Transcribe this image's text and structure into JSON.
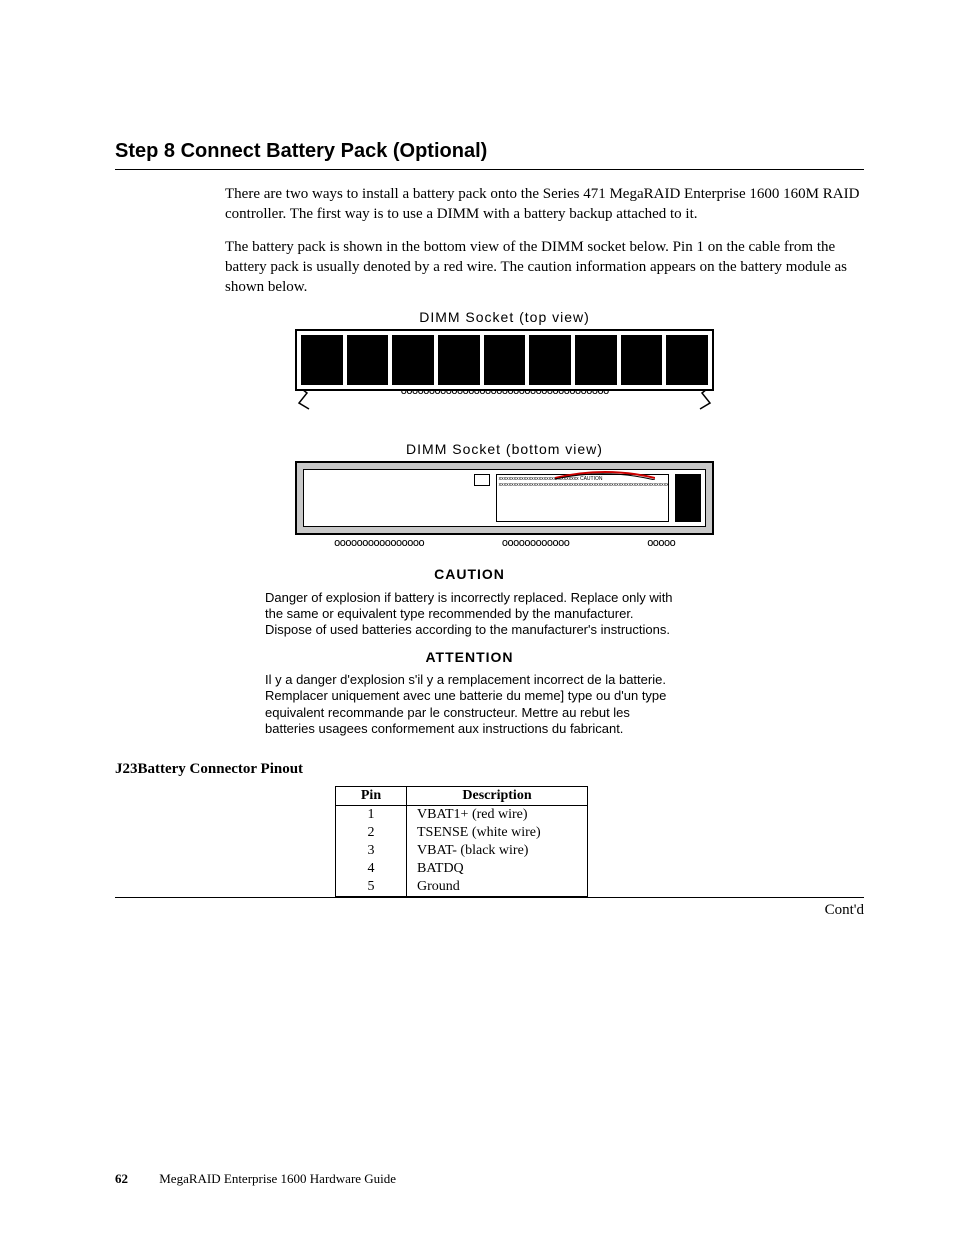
{
  "heading": "Step 8 Connect Battery Pack (Optional)",
  "paragraphs": {
    "p1": "There are two ways to install a battery pack onto the Series 471 MegaRAID Enterprise 1600 160M RAID controller. The first way is to use a DIMM with a battery backup attached to it.",
    "p2": "The battery pack is shown in the bottom view of the DIMM socket below. Pin 1 on the cable from the battery pack is usually denoted by a red wire. The caution information appears on the battery module as shown below."
  },
  "diagram": {
    "top_label": "DIMM  Socket  (top  view)",
    "bottom_label": "DIMM  Socket  (bottom  view)",
    "chip_count": 9,
    "chip_color": "#000000",
    "socket_bg_top": "#ffffff",
    "socket_bg_bottom": "#c8c8c8",
    "wire_color": "#cc0000",
    "pins_glyph": "ooooooooooooooooooooooooooooooooooooo",
    "bottom_pins_a": "oooooooooooooooo",
    "bottom_pins_b": "oooooooooooo",
    "bottom_pins_c": "ooooo"
  },
  "caution": {
    "title_en": "CAUTION",
    "text_en": "Danger of explosion if battery is incorrectly replaced. Replace only with the same or equivalent type recommended by the manufacturer. Dispose of used batteries according to the manufacturer's instructions.",
    "title_fr": "ATTENTION",
    "text_fr": "Il y a danger d'explosion s'il y a remplacement incorrect de la batterie. Remplacer uniquement avec une batterie du meme] type ou d'un type equivalent recommande par le constructeur. Mettre au rebut les batteries usagees conformement aux instructions du fabricant."
  },
  "subheading": "J23Battery Connector Pinout",
  "table": {
    "columns": [
      "Pin",
      "Description"
    ],
    "rows": [
      [
        "1",
        "VBAT1+ (red wire)"
      ],
      [
        "2",
        "TSENSE (white wire)"
      ],
      [
        "3",
        "VBAT-    (black wire)"
      ],
      [
        "4",
        "BATDQ"
      ],
      [
        "5",
        "Ground"
      ]
    ]
  },
  "contd": "Cont'd",
  "footer": {
    "page_number": "62",
    "doc_title": "MegaRAID Enterprise 1600 Hardware Guide"
  }
}
